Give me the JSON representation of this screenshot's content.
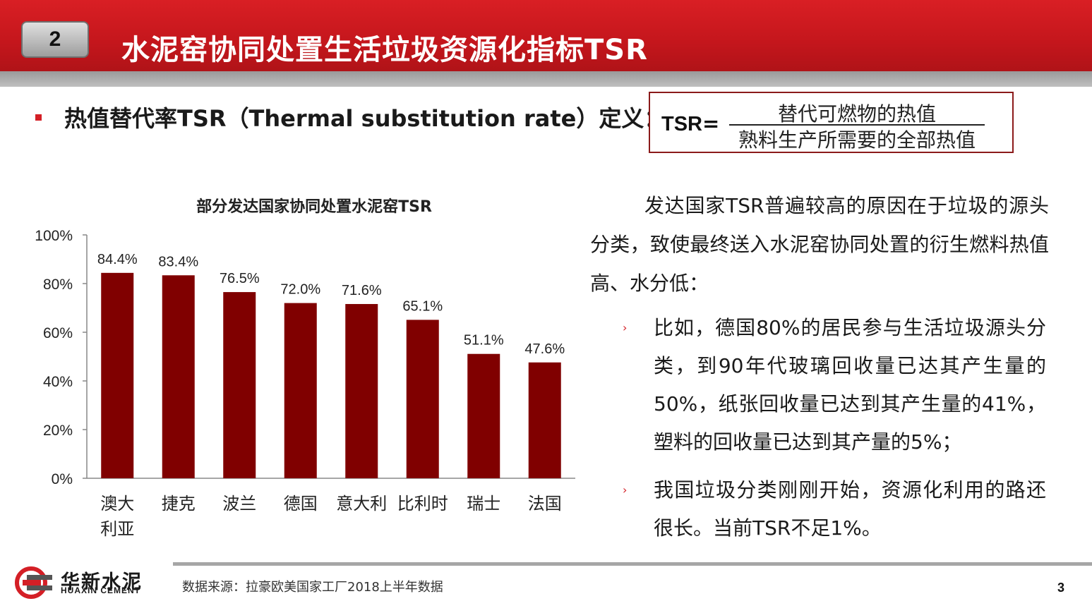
{
  "header": {
    "slide_badge": "2",
    "title": "水泥窑协同处置生活垃圾资源化指标TSR"
  },
  "definition": {
    "text": "热值替代率TSR（Thermal substitution rate）定义："
  },
  "formula": {
    "lhs": "TSR",
    "equals": "=",
    "numerator": "替代可燃物的热值",
    "denominator": "熟料生产所需要的全部热值"
  },
  "chart_data": {
    "type": "bar",
    "title": "部分发达国家协同处置水泥窑TSR",
    "categories": [
      "澳大利亚",
      "捷克",
      "波兰",
      "德国",
      "意大利",
      "比利时",
      "瑞士",
      "法国"
    ],
    "category_lines": [
      [
        "澳大",
        "利亚"
      ],
      [
        "捷克"
      ],
      [
        "波兰"
      ],
      [
        "德国"
      ],
      [
        "意大利"
      ],
      [
        "比利时"
      ],
      [
        "瑞士"
      ],
      [
        "法国"
      ]
    ],
    "values": [
      84.4,
      83.4,
      76.5,
      72.0,
      71.6,
      65.1,
      51.1,
      47.6
    ],
    "data_labels": [
      "84.4%",
      "83.4%",
      "76.5%",
      "72.0%",
      "71.6%",
      "65.1%",
      "51.1%",
      "47.6%"
    ],
    "ylim": [
      0,
      100
    ],
    "yticks": [
      0,
      20,
      40,
      60,
      80,
      100
    ],
    "ytick_labels": [
      "0%",
      "20%",
      "40%",
      "60%",
      "80%",
      "100%"
    ],
    "xlabel": "",
    "ylabel": "",
    "bar_color": "#800000",
    "grid": false
  },
  "explanation": {
    "intro": "发达国家TSR普遍较高的原因在于垃圾的源头分类，致使最终送入水泥窑协同处置的衍生燃料热值高、水分低：",
    "bullets": [
      "比如，德国80%的居民参与生活垃圾源头分类，到90年代玻璃回收量已达其产生量的50%，纸张回收量已达到其产生量的41%，塑料的回收量已达到其产量的5%；",
      "我国垃圾分类刚刚开始，资源化利用的路还很长。当前TSR不足1%。"
    ],
    "bullet_mark": "›"
  },
  "footer": {
    "logo_cn": "华新水泥",
    "logo_en": "HUAXIN CEMENT",
    "source": "数据来源：拉豪欧美国家工厂2018上半年数据",
    "page_number": "3"
  },
  "colors": {
    "header_red": "#c4161c",
    "accent_red": "#d41f26",
    "bar": "#800000",
    "footer_grey": "#a6a6a6"
  }
}
